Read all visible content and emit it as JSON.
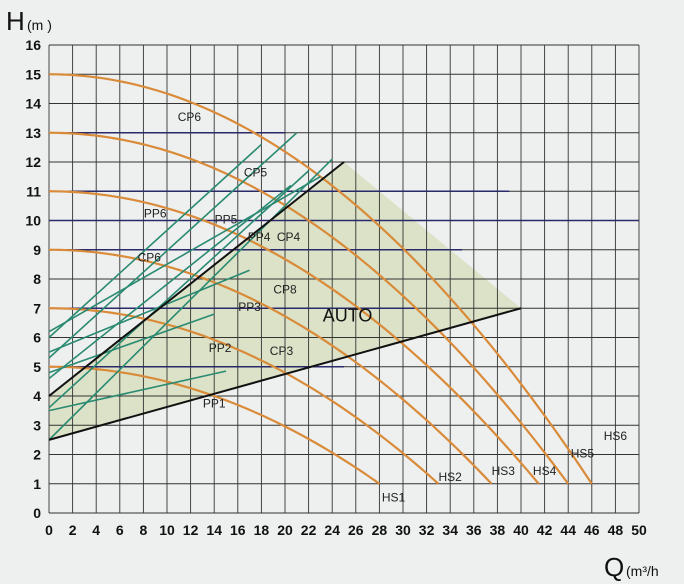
{
  "chart_data": {
    "type": "line",
    "xlabel_main": "Q",
    "xlabel_unit": "(m³/h",
    "ylabel_main": "H",
    "ylabel_unit": "(m )",
    "xlim": [
      0,
      50
    ],
    "ylim": [
      0,
      16
    ],
    "x_ticks": [
      0,
      2,
      4,
      6,
      8,
      10,
      12,
      14,
      16,
      18,
      20,
      22,
      24,
      26,
      28,
      30,
      32,
      34,
      36,
      38,
      40,
      42,
      44,
      46,
      48,
      50
    ],
    "y_ticks": [
      0,
      1,
      2,
      3,
      4,
      5,
      6,
      7,
      8,
      9,
      10,
      11,
      12,
      13,
      14,
      15,
      16
    ],
    "grid": true,
    "region_label": "AUTO",
    "colors": {
      "hs_curve": "#d98b3a",
      "cp_line": "#2a8a72",
      "black_line": "#111111",
      "navy_line": "#2a2a6a",
      "region_fill": "#d7dfbf",
      "grid": "#333333"
    },
    "hs_curves": [
      {
        "name": "HS1",
        "H0": 5,
        "Qmax": 28
      },
      {
        "name": "HS2",
        "H0": 7,
        "Qmax": 33
      },
      {
        "name": "HS3",
        "H0": 9,
        "Qmax": 37.5
      },
      {
        "name": "HS4",
        "H0": 11,
        "Qmax": 41.5
      },
      {
        "name": "HS5",
        "H0": 13,
        "Qmax": 44
      },
      {
        "name": "HS6",
        "H0": 15,
        "Qmax": 46
      }
    ],
    "navy_lines": [
      {
        "y": 5,
        "x_end": 25
      },
      {
        "y": 7,
        "x_end": 31
      },
      {
        "y": 9,
        "x_end": 35
      },
      {
        "y": 10,
        "x_end": 50
      },
      {
        "y": 11,
        "x_end": 39
      },
      {
        "y": 13,
        "x_end": 20
      }
    ],
    "pp_lines": [
      {
        "name": "PP1",
        "from": [
          0,
          3.5
        ],
        "to": [
          15,
          4.85
        ]
      },
      {
        "name": "PP2",
        "from": [
          0,
          4.8
        ],
        "to": [
          14,
          6.8
        ]
      },
      {
        "name": "PP3",
        "from": [
          0,
          5.5
        ],
        "to": [
          17,
          8.3
        ]
      },
      {
        "name": "PP4",
        "from": [
          0,
          6.2
        ],
        "to": [
          23,
          11.5
        ]
      }
    ],
    "cp_lines": [
      {
        "name": "CP3",
        "from": [
          0,
          2.5
        ],
        "to": [
          24,
          12.1
        ]
      },
      {
        "name": "CP4",
        "from": [
          0,
          3.6
        ],
        "to": [
          22,
          11.7
        ]
      },
      {
        "name": "CP5",
        "from": [
          0,
          5.3
        ],
        "to": [
          21,
          13
        ]
      },
      {
        "name": "CP6",
        "from": [
          0,
          6.0
        ],
        "to": [
          18,
          12.6
        ]
      },
      {
        "name": "CP8",
        "from": [
          0,
          4.6
        ],
        "to": [
          20.5,
          11.2
        ]
      }
    ],
    "black_lines": [
      {
        "from": [
          0,
          2.5
        ],
        "to": [
          40,
          7
        ]
      },
      {
        "from": [
          0,
          4
        ],
        "to": [
          25,
          12
        ]
      }
    ],
    "region": [
      [
        0,
        2.5
      ],
      [
        40,
        7
      ],
      [
        25,
        12
      ],
      [
        0,
        4
      ]
    ],
    "labels": [
      {
        "text": "HS1",
        "x": 29.2,
        "y": 0.4
      },
      {
        "text": "HS2",
        "x": 34.0,
        "y": 1.1
      },
      {
        "text": "HS3",
        "x": 38.5,
        "y": 1.3
      },
      {
        "text": "HS4",
        "x": 42.0,
        "y": 1.3
      },
      {
        "text": "HS5",
        "x": 45.2,
        "y": 1.9
      },
      {
        "text": "HS6",
        "x": 48.0,
        "y": 2.5
      },
      {
        "text": "PP1",
        "x": 14.0,
        "y": 3.6
      },
      {
        "text": "PP2",
        "x": 14.5,
        "y": 5.5
      },
      {
        "text": "PP3",
        "x": 17.0,
        "y": 6.9
      },
      {
        "text": "PP4",
        "x": 17.8,
        "y": 9.3
      },
      {
        "text": "PP5",
        "x": 15.0,
        "y": 9.9
      },
      {
        "text": "PP6",
        "x": 9.0,
        "y": 10.1
      },
      {
        "text": "CP3",
        "x": 19.7,
        "y": 5.4
      },
      {
        "text": "CP4",
        "x": 20.3,
        "y": 9.3
      },
      {
        "text": "CP5",
        "x": 17.5,
        "y": 11.5
      },
      {
        "text": "CP6",
        "x": 8.5,
        "y": 8.6
      },
      {
        "text": "CP6",
        "x": 11.9,
        "y": 13.4
      },
      {
        "text": "CP8",
        "x": 20.0,
        "y": 7.5
      }
    ]
  }
}
